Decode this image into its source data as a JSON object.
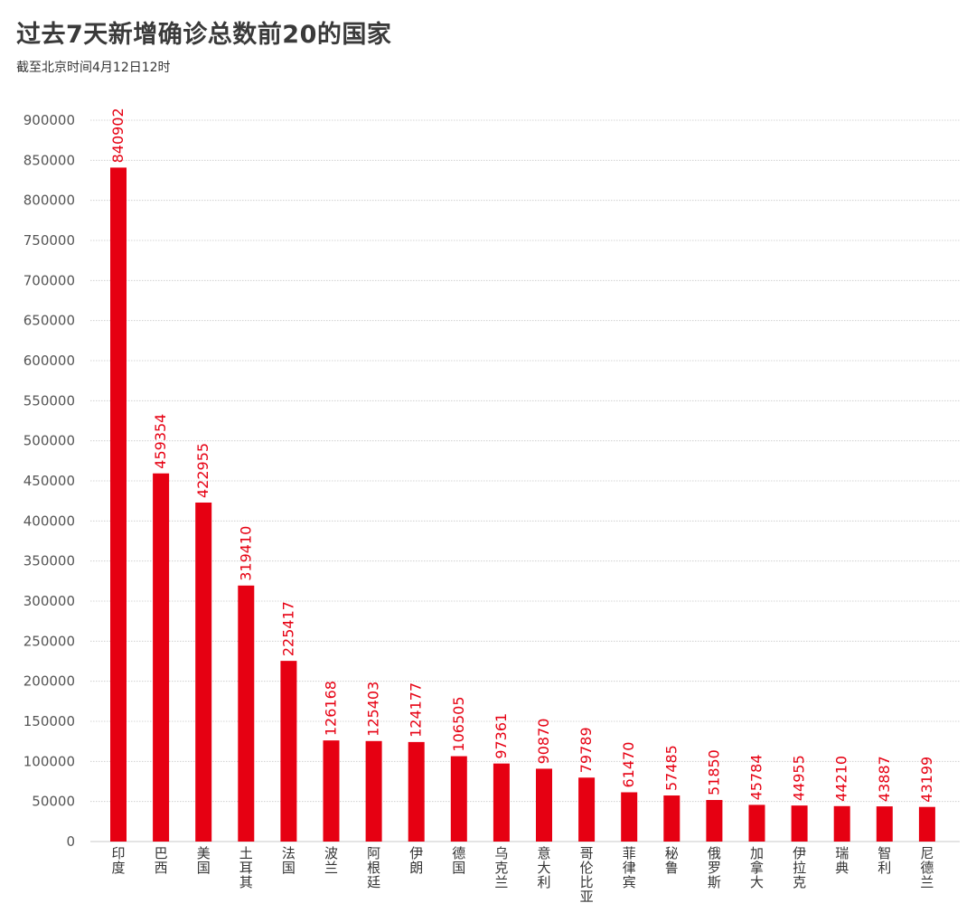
{
  "header": {
    "title": "过去7天新增确诊总数前20的国家",
    "subtitle": "截至北京时间4月12日12时"
  },
  "colors": {
    "bar": "#e60012",
    "grid": "#c8c8c8",
    "text": "#333333"
  },
  "chart_data": {
    "type": "bar",
    "title": "过去7天新增确诊总数前20的国家",
    "subtitle": "截至北京时间4月12日12时",
    "categories": [
      "印度",
      "巴西",
      "美国",
      "土耳其",
      "法国",
      "波兰",
      "阿根廷",
      "伊朗",
      "德国",
      "乌克兰",
      "意大利",
      "哥伦比亚",
      "菲律宾",
      "秘鲁",
      "俄罗斯",
      "加拿大",
      "伊拉克",
      "瑞典",
      "智利",
      "尼德兰"
    ],
    "values": [
      840902,
      459354,
      422955,
      319410,
      225417,
      126168,
      125403,
      124177,
      106505,
      97361,
      90870,
      79789,
      61470,
      57485,
      51850,
      45784,
      44955,
      44210,
      43887,
      43199
    ],
    "yticks": [
      0,
      50000,
      100000,
      150000,
      200000,
      250000,
      300000,
      350000,
      400000,
      450000,
      500000,
      550000,
      600000,
      650000,
      700000,
      750000,
      800000,
      850000,
      900000
    ],
    "ylim": [
      0,
      900000
    ],
    "xlabel": "",
    "ylabel": "",
    "grid": true,
    "data_labels": true
  }
}
